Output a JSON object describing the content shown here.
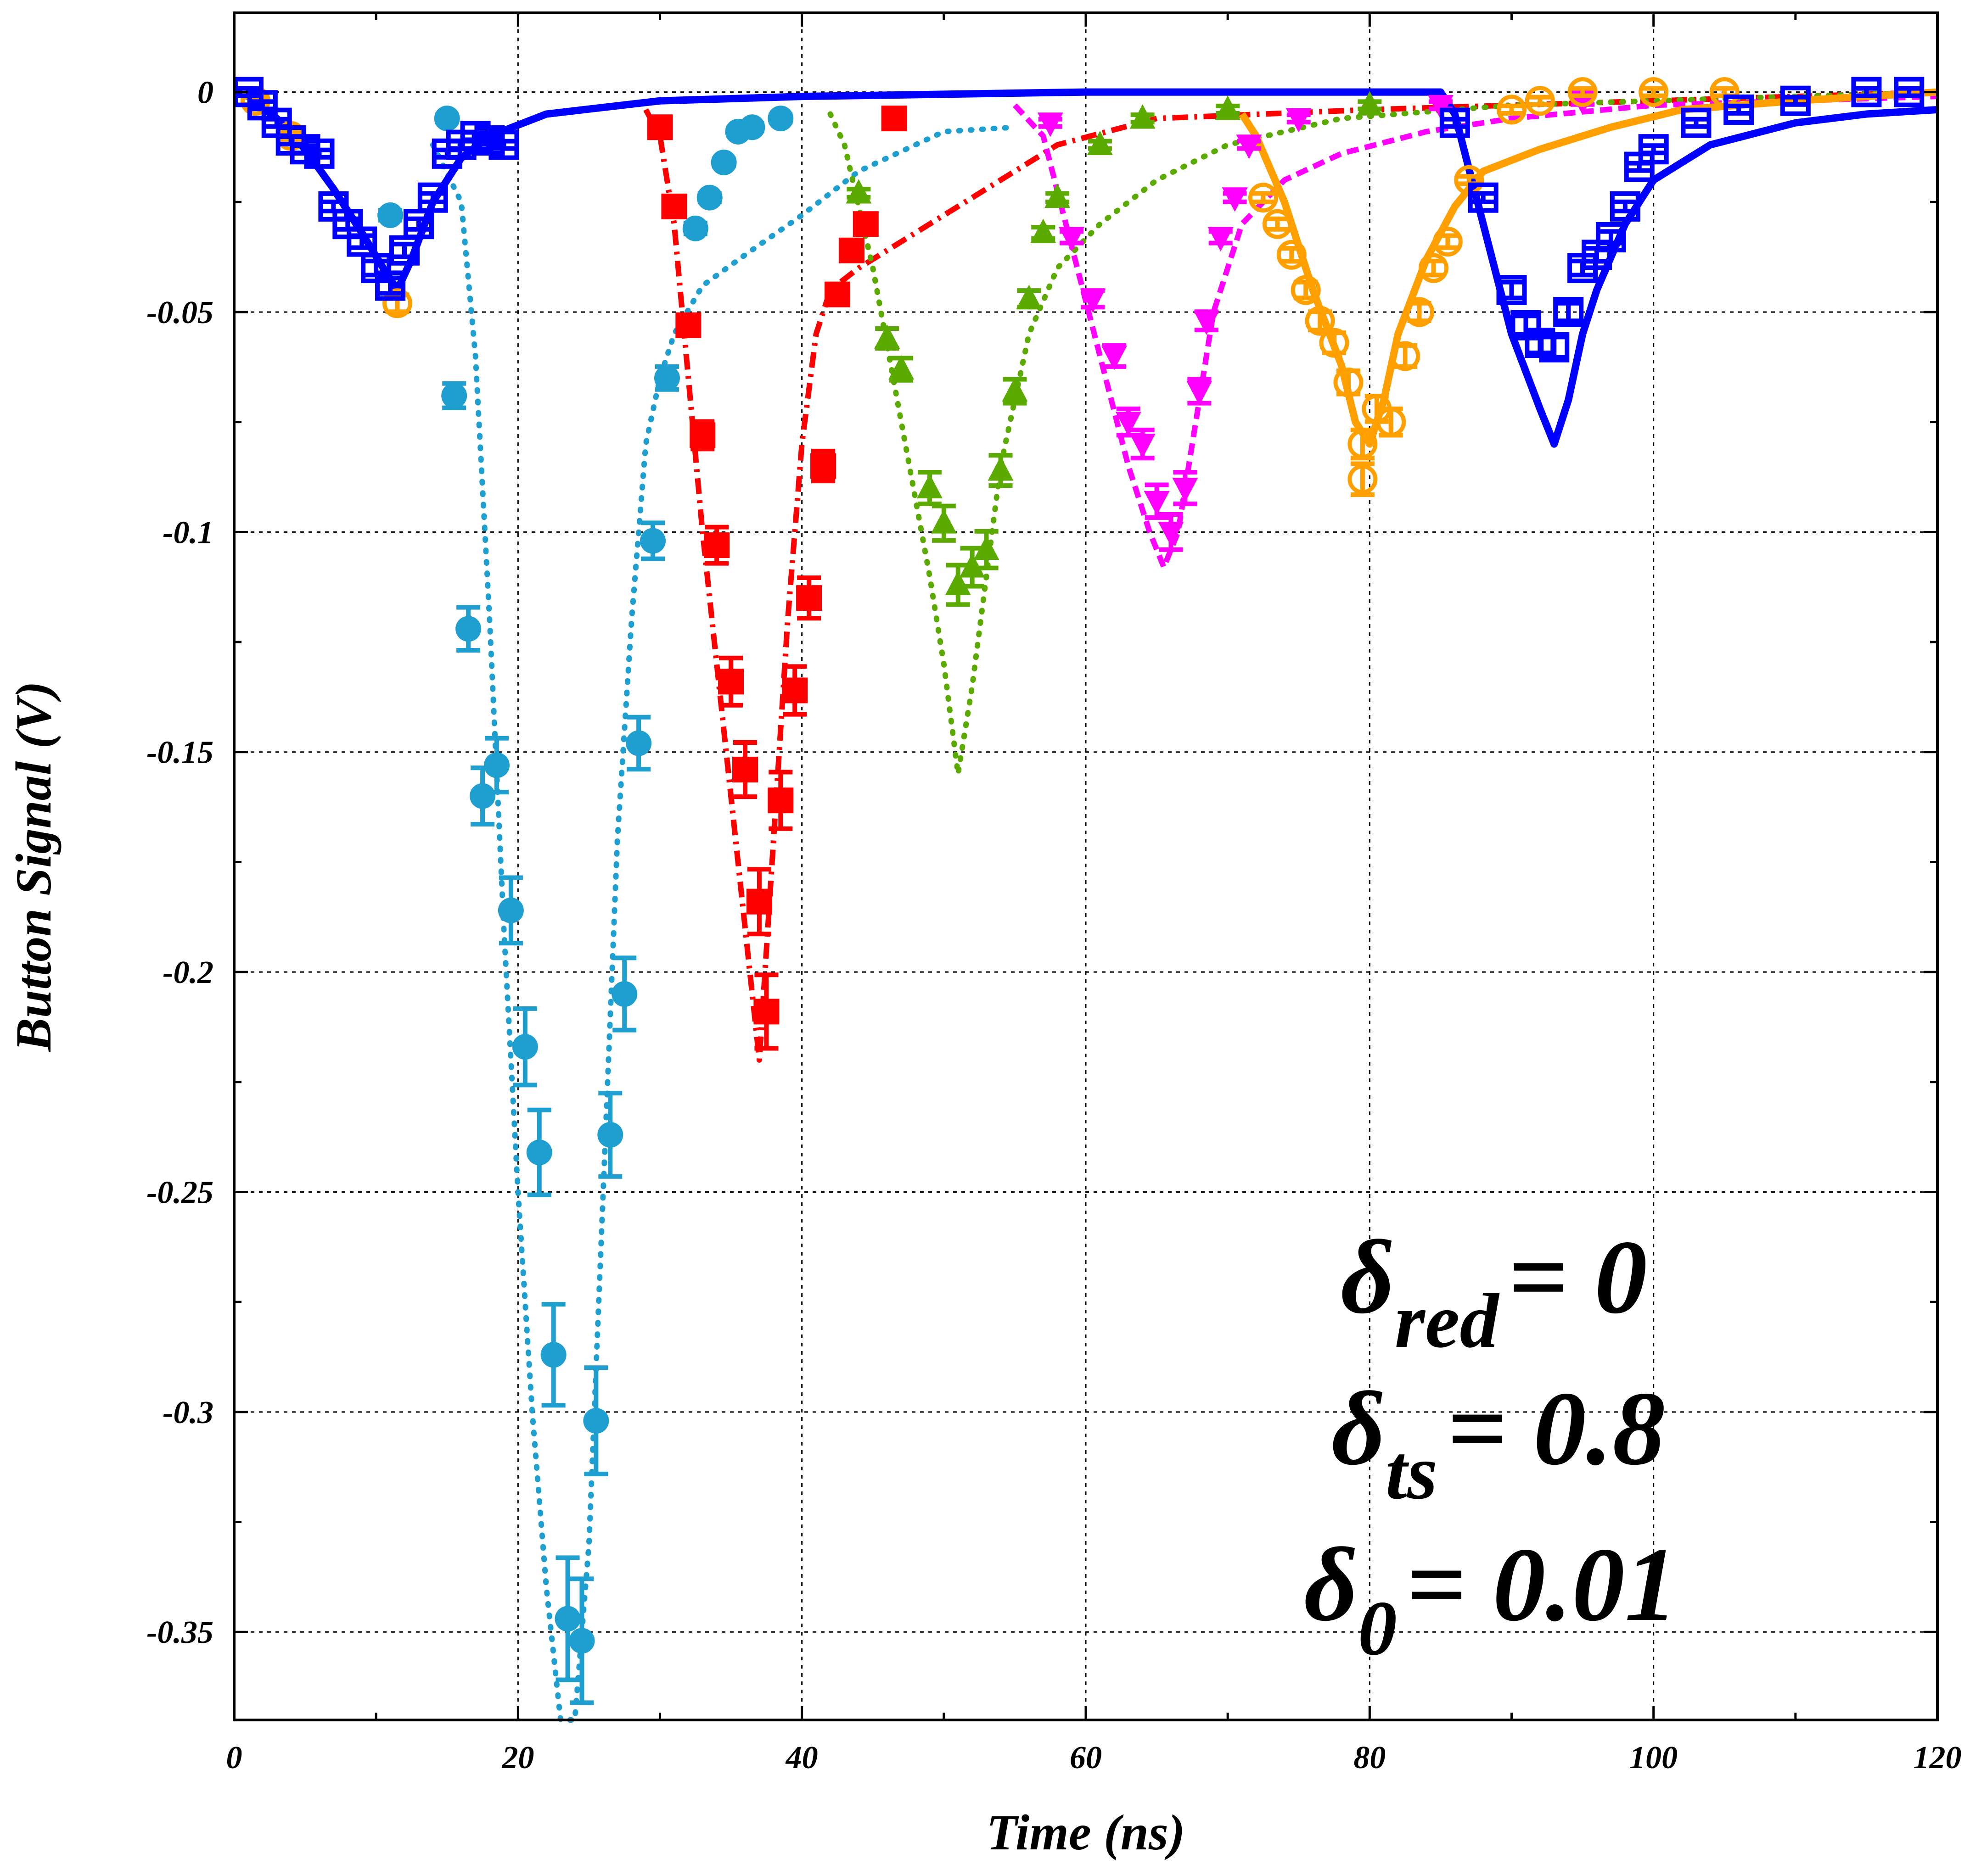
{
  "chart_data": {
    "type": "scatter",
    "title": "",
    "xlabel": "Time (ns)",
    "ylabel": "Button Signal (V)",
    "xlim": [
      0,
      120
    ],
    "ylim": [
      -0.37,
      0.018
    ],
    "x_ticks": [
      0,
      20,
      40,
      60,
      80,
      100,
      120
    ],
    "y_ticks": [
      0,
      -0.05,
      -0.1,
      -0.15,
      -0.2,
      -0.25,
      -0.3,
      -0.35
    ],
    "grid": true,
    "annotations": [
      {
        "symbol": "δ",
        "sub": "red",
        "value": "= 0"
      },
      {
        "symbol": "δ",
        "sub": "ts",
        "value": "= 0.8"
      },
      {
        "symbol": "δ",
        "sub": "0",
        "value": "= 0.01"
      }
    ],
    "series": [
      {
        "color": "#1f9fcf",
        "marker": "circle",
        "simulation_style": "dotted",
        "data": [
          [
            15.5,
            -0.069
          ],
          [
            16.5,
            -0.122
          ],
          [
            17.5,
            -0.16
          ],
          [
            18.5,
            -0.153
          ],
          [
            19.5,
            -0.186
          ],
          [
            20.5,
            -0.217
          ],
          [
            21.5,
            -0.241
          ],
          [
            22.5,
            -0.287
          ],
          [
            23.5,
            -0.347
          ],
          [
            24.5,
            -0.352
          ],
          [
            25.5,
            -0.302
          ],
          [
            26.5,
            -0.237
          ],
          [
            27.5,
            -0.205
          ],
          [
            28.5,
            -0.148
          ],
          [
            29.5,
            -0.102
          ],
          [
            30.5,
            -0.065
          ],
          [
            32.5,
            -0.031
          ],
          [
            33.5,
            -0.024
          ],
          [
            34.5,
            -0.016
          ],
          [
            35.5,
            -0.009
          ],
          [
            36.5,
            -0.008
          ],
          [
            38.5,
            -0.006
          ],
          [
            15,
            -0.006
          ],
          [
            11,
            -0.028
          ]
        ],
        "sim": [
          [
            14,
            -0.012
          ],
          [
            16,
            -0.025
          ],
          [
            17,
            -0.06
          ],
          [
            18,
            -0.12
          ],
          [
            19,
            -0.19
          ],
          [
            20,
            -0.25
          ],
          [
            21,
            -0.3
          ],
          [
            22,
            -0.34
          ],
          [
            23,
            -0.37
          ],
          [
            24,
            -0.37
          ],
          [
            25,
            -0.33
          ],
          [
            26,
            -0.25
          ],
          [
            27,
            -0.17
          ],
          [
            28,
            -0.12
          ],
          [
            29,
            -0.08
          ],
          [
            30,
            -0.065
          ],
          [
            31,
            -0.055
          ],
          [
            33,
            -0.044
          ],
          [
            36,
            -0.037
          ],
          [
            40,
            -0.028
          ],
          [
            44,
            -0.018
          ],
          [
            50,
            -0.009
          ],
          [
            55,
            -0.008
          ]
        ]
      },
      {
        "color": "#ff0000",
        "marker": "square",
        "simulation_style": "dashdot",
        "data": [
          [
            30,
            -0.008
          ],
          [
            31,
            -0.026
          ],
          [
            32,
            -0.053
          ],
          [
            33,
            -0.078
          ],
          [
            34,
            -0.103
          ],
          [
            35,
            -0.134
          ],
          [
            36,
            -0.154
          ],
          [
            37,
            -0.184
          ],
          [
            37.5,
            -0.209
          ],
          [
            38.5,
            -0.161
          ],
          [
            39.5,
            -0.136
          ],
          [
            40.5,
            -0.115
          ],
          [
            41.5,
            -0.085
          ],
          [
            42.5,
            -0.046
          ],
          [
            43.5,
            -0.036
          ],
          [
            44.5,
            -0.03
          ],
          [
            46.5,
            -0.006
          ]
        ],
        "sim": [
          [
            29,
            -0.004
          ],
          [
            30,
            -0.01
          ],
          [
            31,
            -0.03
          ],
          [
            32,
            -0.065
          ],
          [
            33,
            -0.1
          ],
          [
            34,
            -0.13
          ],
          [
            35,
            -0.16
          ],
          [
            36,
            -0.19
          ],
          [
            37,
            -0.22
          ],
          [
            38,
            -0.17
          ],
          [
            39,
            -0.12
          ],
          [
            40,
            -0.08
          ],
          [
            41,
            -0.055
          ],
          [
            42,
            -0.045
          ],
          [
            44,
            -0.04
          ],
          [
            48,
            -0.032
          ],
          [
            53,
            -0.022
          ],
          [
            58,
            -0.012
          ],
          [
            65,
            -0.006
          ],
          [
            80,
            -0.004
          ],
          [
            100,
            -0.002
          ],
          [
            120,
            0
          ]
        ]
      },
      {
        "color": "#5aaa00",
        "marker": "triangle-up",
        "simulation_style": "dotted",
        "data": [
          [
            44,
            -0.023
          ],
          [
            46,
            -0.056
          ],
          [
            47,
            -0.063
          ],
          [
            49,
            -0.09
          ],
          [
            50,
            -0.098
          ],
          [
            51,
            -0.112
          ],
          [
            52,
            -0.108
          ],
          [
            53,
            -0.104
          ],
          [
            54,
            -0.086
          ],
          [
            55,
            -0.068
          ],
          [
            56,
            -0.047
          ],
          [
            57,
            -0.032
          ],
          [
            58,
            -0.024
          ],
          [
            61,
            -0.012
          ],
          [
            64,
            -0.006
          ],
          [
            70,
            -0.004
          ],
          [
            80,
            -0.003
          ]
        ],
        "sim": [
          [
            42,
            -0.005
          ],
          [
            43,
            -0.012
          ],
          [
            45,
            -0.04
          ],
          [
            47,
            -0.075
          ],
          [
            49,
            -0.11
          ],
          [
            50,
            -0.13
          ],
          [
            51,
            -0.155
          ],
          [
            52,
            -0.135
          ],
          [
            53,
            -0.11
          ],
          [
            54,
            -0.085
          ],
          [
            56,
            -0.055
          ],
          [
            58,
            -0.04
          ],
          [
            61,
            -0.03
          ],
          [
            65,
            -0.02
          ],
          [
            70,
            -0.012
          ],
          [
            78,
            -0.006
          ],
          [
            90,
            -0.003
          ],
          [
            120,
            0
          ]
        ]
      },
      {
        "color": "#ff00ff",
        "marker": "triangle-down",
        "simulation_style": "dashed",
        "data": [
          [
            57.5,
            -0.007
          ],
          [
            59,
            -0.033
          ],
          [
            60.5,
            -0.047
          ],
          [
            62,
            -0.06
          ],
          [
            63,
            -0.075
          ],
          [
            64,
            -0.08
          ],
          [
            65,
            -0.093
          ],
          [
            66,
            -0.1
          ],
          [
            67,
            -0.09
          ],
          [
            68,
            -0.068
          ],
          [
            68.5,
            -0.052
          ],
          [
            69.5,
            -0.033
          ],
          [
            70.5,
            -0.024
          ],
          [
            71.5,
            -0.012
          ],
          [
            75,
            -0.006
          ],
          [
            85,
            -0.003
          ],
          [
            95,
            -0.002
          ]
        ],
        "sim": [
          [
            55,
            -0.003
          ],
          [
            57,
            -0.01
          ],
          [
            59,
            -0.035
          ],
          [
            61,
            -0.06
          ],
          [
            63,
            -0.085
          ],
          [
            64.5,
            -0.1
          ],
          [
            65.5,
            -0.108
          ],
          [
            66.5,
            -0.1
          ],
          [
            67.5,
            -0.08
          ],
          [
            69,
            -0.05
          ],
          [
            71,
            -0.03
          ],
          [
            74,
            -0.02
          ],
          [
            78,
            -0.014
          ],
          [
            84,
            -0.009
          ],
          [
            90,
            -0.006
          ],
          [
            100,
            -0.003
          ],
          [
            120,
            -0.001
          ]
        ]
      },
      {
        "color": "#ff9f00",
        "marker": "circle-open",
        "simulation_style": "solid",
        "data": [
          [
            72.5,
            -0.024
          ],
          [
            73.5,
            -0.03
          ],
          [
            74.5,
            -0.037
          ],
          [
            75.5,
            -0.045
          ],
          [
            76.5,
            -0.052
          ],
          [
            77.5,
            -0.057
          ],
          [
            78.5,
            -0.066
          ],
          [
            79.5,
            -0.08
          ],
          [
            79.5,
            -0.088
          ],
          [
            80.5,
            -0.072
          ],
          [
            81.5,
            -0.075
          ],
          [
            82.5,
            -0.06
          ],
          [
            83.5,
            -0.05
          ],
          [
            84.5,
            -0.04
          ],
          [
            85.5,
            -0.034
          ],
          [
            87,
            -0.02
          ],
          [
            90,
            -0.004
          ],
          [
            92,
            -0.002
          ],
          [
            95,
            0
          ],
          [
            100,
            0
          ],
          [
            105,
            0
          ],
          [
            1.5,
            -0.002
          ],
          [
            4,
            -0.01
          ],
          [
            11.5,
            -0.048
          ]
        ],
        "sim": [
          [
            71,
            -0.005
          ],
          [
            72,
            -0.01
          ],
          [
            74,
            -0.025
          ],
          [
            76,
            -0.045
          ],
          [
            78,
            -0.062
          ],
          [
            79,
            -0.075
          ],
          [
            80,
            -0.08
          ],
          [
            81,
            -0.07
          ],
          [
            82,
            -0.055
          ],
          [
            84,
            -0.038
          ],
          [
            86,
            -0.026
          ],
          [
            88,
            -0.018
          ],
          [
            92,
            -0.013
          ],
          [
            97,
            -0.008
          ],
          [
            102,
            -0.004
          ],
          [
            110,
            -0.002
          ],
          [
            120,
            0
          ]
        ]
      },
      {
        "color": "#0000ff",
        "marker": "square-open",
        "simulation_style": "solid",
        "data": [
          [
            1,
            0
          ],
          [
            2,
            -0.003
          ],
          [
            3,
            -0.007
          ],
          [
            4,
            -0.011
          ],
          [
            5,
            -0.013
          ],
          [
            6,
            -0.014
          ],
          [
            7,
            -0.026
          ],
          [
            8,
            -0.03
          ],
          [
            9,
            -0.034
          ],
          [
            10,
            -0.04
          ],
          [
            11,
            -0.044
          ],
          [
            12,
            -0.036
          ],
          [
            13,
            -0.03
          ],
          [
            14,
            -0.024
          ],
          [
            15,
            -0.014
          ],
          [
            16,
            -0.012
          ],
          [
            17,
            -0.01
          ],
          [
            18,
            -0.011
          ],
          [
            19,
            -0.012
          ],
          [
            86,
            -0.007
          ],
          [
            88,
            -0.024
          ],
          [
            90,
            -0.045
          ],
          [
            91,
            -0.053
          ],
          [
            92,
            -0.057
          ],
          [
            93,
            -0.058
          ],
          [
            94,
            -0.05
          ],
          [
            95,
            -0.04
          ],
          [
            96,
            -0.037
          ],
          [
            97,
            -0.033
          ],
          [
            98,
            -0.026
          ],
          [
            99,
            -0.017
          ],
          [
            100,
            -0.013
          ],
          [
            103,
            -0.007
          ],
          [
            106,
            -0.004
          ],
          [
            110,
            -0.002
          ],
          [
            115,
            0
          ],
          [
            118,
            0
          ]
        ],
        "sim": [
          [
            0,
            0
          ],
          [
            1,
            -0.001
          ],
          [
            3,
            -0.006
          ],
          [
            5,
            -0.013
          ],
          [
            7,
            -0.022
          ],
          [
            9,
            -0.032
          ],
          [
            10.5,
            -0.04
          ],
          [
            11.5,
            -0.045
          ],
          [
            12.5,
            -0.038
          ],
          [
            14,
            -0.025
          ],
          [
            16,
            -0.015
          ],
          [
            18,
            -0.01
          ],
          [
            22,
            -0.005
          ],
          [
            30,
            -0.002
          ],
          [
            40,
            -0.001
          ],
          [
            60,
            0
          ],
          [
            85,
            0
          ],
          [
            86,
            -0.005
          ],
          [
            88,
            -0.03
          ],
          [
            90,
            -0.055
          ],
          [
            92,
            -0.072
          ],
          [
            93,
            -0.08
          ],
          [
            94,
            -0.07
          ],
          [
            95,
            -0.055
          ],
          [
            96,
            -0.045
          ],
          [
            98,
            -0.03
          ],
          [
            100,
            -0.02
          ],
          [
            104,
            -0.012
          ],
          [
            110,
            -0.007
          ],
          [
            115,
            -0.005
          ],
          [
            120,
            -0.004
          ]
        ]
      }
    ]
  }
}
